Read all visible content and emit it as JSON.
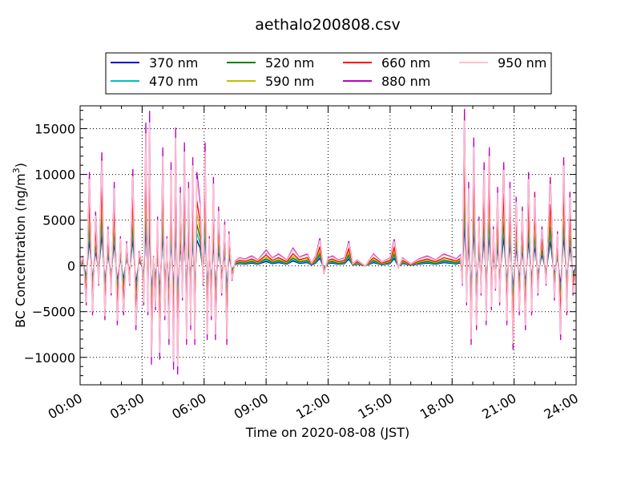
{
  "chart_data": {
    "type": "line",
    "title": "aethalo200808.csv",
    "xlabel": "Time on 2020-08-08 (JST)",
    "ylabel_main": "BC Concentration (ng/m",
    "ylabel_sup": "3",
    "ylabel_tail": ")",
    "xlim_hours": [
      0,
      24
    ],
    "ylim": [
      -13000,
      17500
    ],
    "grid": true,
    "legend_position": "top-center",
    "x_ticks": [
      {
        "hour": 0,
        "label": "00:00"
      },
      {
        "hour": 3,
        "label": "03:00"
      },
      {
        "hour": 6,
        "label": "06:00"
      },
      {
        "hour": 9,
        "label": "09:00"
      },
      {
        "hour": 12,
        "label": "12:00"
      },
      {
        "hour": 15,
        "label": "15:00"
      },
      {
        "hour": 18,
        "label": "18:00"
      },
      {
        "hour": 21,
        "label": "21:00"
      },
      {
        "hour": 24,
        "label": "24:00"
      }
    ],
    "y_ticks": [
      {
        "value": -10000,
        "label": "−10000"
      },
      {
        "value": -5000,
        "label": "−5000"
      },
      {
        "value": 0,
        "label": "0"
      },
      {
        "value": 5000,
        "label": "5000"
      },
      {
        "value": 10000,
        "label": "10000"
      },
      {
        "value": 15000,
        "label": "15000"
      }
    ],
    "series": [
      {
        "name": "370 nm",
        "color": "#0000cc",
        "scale": 0.3
      },
      {
        "name": "470 nm",
        "color": "#00bfbf",
        "scale": 0.38
      },
      {
        "name": "520 nm",
        "color": "#007f00",
        "scale": 0.48
      },
      {
        "name": "590 nm",
        "color": "#bfbf00",
        "scale": 0.6
      },
      {
        "name": "660 nm",
        "color": "#ff0000",
        "scale": 0.75
      },
      {
        "name": "880 nm",
        "color": "#bf00bf",
        "scale": 1.08
      },
      {
        "name": "950 nm",
        "color": "#ffc0cb",
        "scale": 1.0
      }
    ],
    "reference_series": "950 nm",
    "reference_points": [
      [
        0.0,
        0
      ],
      [
        0.15,
        1000
      ],
      [
        0.3,
        -4000
      ],
      [
        0.45,
        9500
      ],
      [
        0.6,
        -5000
      ],
      [
        0.75,
        5500
      ],
      [
        0.9,
        -2000
      ],
      [
        1.05,
        11500
      ],
      [
        1.2,
        -5500
      ],
      [
        1.35,
        4000
      ],
      [
        1.5,
        -3000
      ],
      [
        1.65,
        8500
      ],
      [
        1.8,
        -6000
      ],
      [
        1.95,
        3000
      ],
      [
        2.1,
        -5000
      ],
      [
        2.25,
        2500
      ],
      [
        2.4,
        -2000
      ],
      [
        2.55,
        9800
      ],
      [
        2.7,
        -6500
      ],
      [
        2.85,
        1500
      ],
      [
        2.95,
        500
      ],
      [
        3.0,
        0
      ],
      [
        3.08,
        -4000
      ],
      [
        3.18,
        14500
      ],
      [
        3.28,
        -5000
      ],
      [
        3.36,
        15700
      ],
      [
        3.45,
        -10000
      ],
      [
        3.55,
        1000
      ],
      [
        3.65,
        -4500
      ],
      [
        3.75,
        5000
      ],
      [
        3.85,
        -9500
      ],
      [
        4.0,
        12000
      ],
      [
        4.1,
        -5500
      ],
      [
        4.2,
        3000
      ],
      [
        4.3,
        -8000
      ],
      [
        4.4,
        10500
      ],
      [
        4.52,
        -10500
      ],
      [
        4.62,
        14000
      ],
      [
        4.72,
        -11000
      ],
      [
        4.85,
        8000
      ],
      [
        4.95,
        -3500
      ],
      [
        5.05,
        12500
      ],
      [
        5.15,
        -8000
      ],
      [
        5.25,
        8500
      ],
      [
        5.35,
        -6500
      ],
      [
        5.45,
        11000
      ],
      [
        5.55,
        -8000
      ],
      [
        5.65,
        9500
      ],
      [
        5.8,
        6500
      ],
      [
        5.95,
        -2000
      ],
      [
        6.05,
        12500
      ],
      [
        6.15,
        -7500
      ],
      [
        6.25,
        3000
      ],
      [
        6.35,
        -5500
      ],
      [
        6.45,
        9000
      ],
      [
        6.55,
        -7500
      ],
      [
        6.7,
        6000
      ],
      [
        6.85,
        -3000
      ],
      [
        7.0,
        4500
      ],
      [
        7.1,
        -8000
      ],
      [
        7.2,
        3500
      ],
      [
        7.35,
        -1500
      ],
      [
        7.5,
        500
      ],
      [
        7.7,
        800
      ],
      [
        8.0,
        700
      ],
      [
        8.3,
        1000
      ],
      [
        8.6,
        600
      ],
      [
        9.0,
        1600
      ],
      [
        9.3,
        800
      ],
      [
        9.6,
        1200
      ],
      [
        10.0,
        600
      ],
      [
        10.3,
        1800
      ],
      [
        10.6,
        900
      ],
      [
        11.0,
        1200
      ],
      [
        11.2,
        300
      ],
      [
        11.4,
        1000
      ],
      [
        11.6,
        2800
      ],
      [
        11.8,
        -800
      ],
      [
        12.0,
        800
      ],
      [
        12.2,
        1000
      ],
      [
        12.5,
        600
      ],
      [
        12.8,
        800
      ],
      [
        13.0,
        2500
      ],
      [
        13.2,
        200
      ],
      [
        13.4,
        600
      ],
      [
        13.8,
        0
      ],
      [
        14.2,
        1200
      ],
      [
        14.6,
        400
      ],
      [
        15.0,
        800
      ],
      [
        15.2,
        2700
      ],
      [
        15.4,
        -200
      ],
      [
        15.6,
        800
      ],
      [
        16.0,
        200
      ],
      [
        16.4,
        700
      ],
      [
        16.8,
        1000
      ],
      [
        17.2,
        600
      ],
      [
        17.6,
        1200
      ],
      [
        18.0,
        900
      ],
      [
        18.2,
        700
      ],
      [
        18.4,
        1100
      ],
      [
        18.5,
        -2000
      ],
      [
        18.6,
        15900
      ],
      [
        18.7,
        -4000
      ],
      [
        18.8,
        8500
      ],
      [
        18.92,
        -8000
      ],
      [
        19.05,
        13000
      ],
      [
        19.18,
        -6500
      ],
      [
        19.3,
        5000
      ],
      [
        19.4,
        -3000
      ],
      [
        19.55,
        10500
      ],
      [
        19.65,
        -6000
      ],
      [
        19.8,
        12000
      ],
      [
        19.9,
        -4500
      ],
      [
        20.0,
        4000
      ],
      [
        20.1,
        -2500
      ],
      [
        20.2,
        8000
      ],
      [
        20.3,
        -4000
      ],
      [
        20.5,
        10500
      ],
      [
        20.65,
        -6000
      ],
      [
        20.8,
        8500
      ],
      [
        20.95,
        -8500
      ],
      [
        21.1,
        7000
      ],
      [
        21.25,
        -5000
      ],
      [
        21.4,
        6000
      ],
      [
        21.55,
        -6500
      ],
      [
        21.7,
        9500
      ],
      [
        21.85,
        -5000
      ],
      [
        22.0,
        7500
      ],
      [
        22.15,
        -3000
      ],
      [
        22.35,
        4000
      ],
      [
        22.55,
        -2000
      ],
      [
        22.75,
        9000
      ],
      [
        22.95,
        -3500
      ],
      [
        23.1,
        3500
      ],
      [
        23.25,
        -7500
      ],
      [
        23.4,
        11000
      ],
      [
        23.55,
        -5000
      ],
      [
        23.7,
        7500
      ],
      [
        23.85,
        -3000
      ],
      [
        24.0,
        0
      ]
    ]
  }
}
